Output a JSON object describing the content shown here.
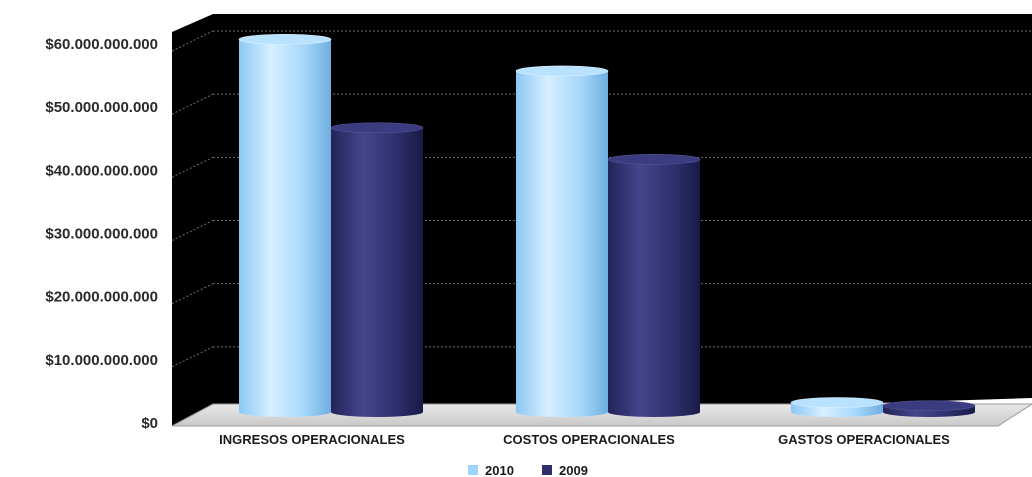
{
  "chart_data": {
    "type": "bar",
    "style": "3d-cylinder",
    "categories": [
      "INGRESOS OPERACIONALES",
      "COSTOS OPERACIONALES",
      "GASTOS OPERACIONALES"
    ],
    "series": [
      {
        "name": "2010",
        "color": "#9fd3ff",
        "values": [
          59000000000,
          54000000000,
          1500000000
        ]
      },
      {
        "name": "2009",
        "color": "#2e2e6e",
        "values": [
          45000000000,
          40000000000,
          1000000000
        ]
      }
    ],
    "yticks": [
      "$0",
      "$10.000.000.000",
      "$20.000.000.000",
      "$30.000.000.000",
      "$40.000.000.000",
      "$50.000.000.000",
      "$60.000.000.000"
    ],
    "ylim": [
      0,
      60000000000
    ],
    "grid": true,
    "legend_position": "bottom",
    "background": "#000000"
  }
}
